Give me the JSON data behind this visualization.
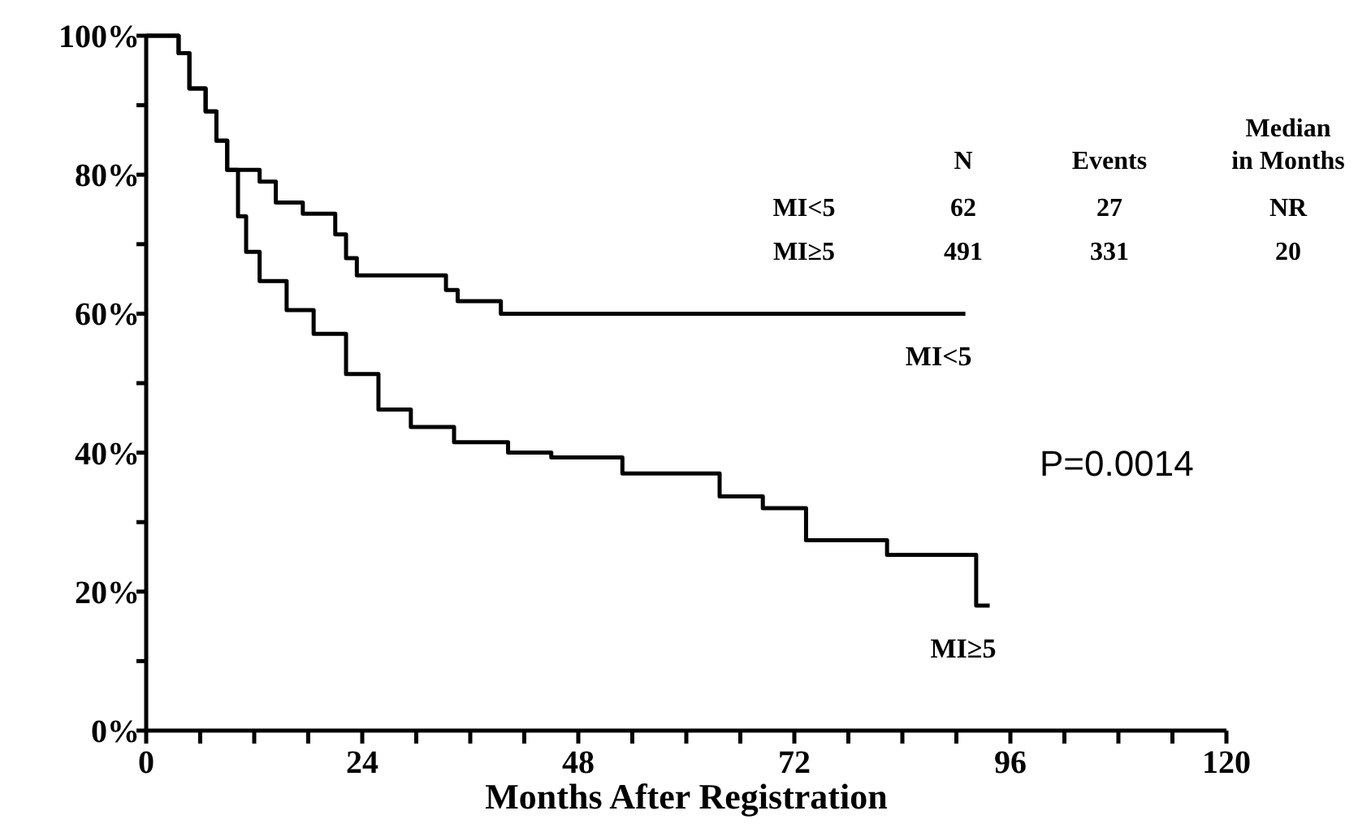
{
  "chart_data": {
    "type": "step",
    "xlabel": "Months After Registration",
    "xlim": [
      0,
      120
    ],
    "xticks": [
      0,
      {
        "value": 6,
        "label": null
      },
      {
        "value": 12,
        "label": null
      },
      {
        "value": 18,
        "label": null
      },
      24,
      {
        "value": 30,
        "label": null
      },
      {
        "value": 36,
        "label": null
      },
      {
        "value": 42,
        "label": null
      },
      48,
      {
        "value": 54,
        "label": null
      },
      {
        "value": 60,
        "label": null
      },
      {
        "value": 66,
        "label": null
      },
      72,
      {
        "value": 78,
        "label": null
      },
      {
        "value": 84,
        "label": null
      },
      {
        "value": 90,
        "label": null
      },
      96,
      {
        "value": 102,
        "label": null
      },
      {
        "value": 108,
        "label": null
      },
      {
        "value": 114,
        "label": null
      },
      120
    ],
    "ylim": [
      0,
      100
    ],
    "yticks": [
      {
        "value": 0,
        "label": "0%"
      },
      {
        "value": 10,
        "label": null
      },
      {
        "value": 20,
        "label": "20%"
      },
      {
        "value": 30,
        "label": null
      },
      {
        "value": 40,
        "label": "40%"
      },
      {
        "value": 50,
        "label": null
      },
      {
        "value": 60,
        "label": "60%"
      },
      {
        "value": 70,
        "label": null
      },
      {
        "value": 80,
        "label": "80%"
      },
      {
        "value": 90,
        "label": null
      },
      {
        "value": 100,
        "label": "100%"
      }
    ],
    "grid": false,
    "marker": "none",
    "line_style": "solid",
    "series": [
      {
        "name": "MI<5",
        "color": "#000000",
        "x": [
          0,
          2.5,
          3.6,
          4.8,
          6.6,
          7.8,
          9,
          12.6,
          14.4,
          17.4,
          21,
          22.2,
          23.4,
          33.3,
          34.6,
          39.4,
          51,
          91
        ],
        "values": [
          100,
          100,
          97.5,
          92.4,
          89.1,
          84.9,
          80.7,
          79,
          76,
          74.4,
          71.4,
          68,
          65.5,
          63.4,
          61.8,
          60,
          60,
          60
        ]
      },
      {
        "name": "MI≥5",
        "color": "#000000",
        "x": [
          0,
          1.8,
          3.6,
          4.8,
          6.6,
          7.8,
          9,
          10.2,
          11.1,
          12.6,
          15.6,
          18.6,
          22.2,
          25.8,
          29.4,
          34.2,
          40.2,
          45,
          52.9,
          63.7,
          68.5,
          73.3,
          82.3,
          92.2,
          93.7
        ],
        "values": [
          100,
          100,
          97.5,
          92.4,
          89.1,
          84.9,
          80.7,
          74,
          68.9,
          64.7,
          60.5,
          57.1,
          51.3,
          46.2,
          43.7,
          41.5,
          40,
          39.3,
          37,
          33.7,
          32,
          27.4,
          25.3,
          18,
          18
        ]
      }
    ],
    "annotations": [
      "N",
      "Events",
      "Median in Months",
      "MI<5",
      "62",
      "27",
      "NR",
      "MI≥5",
      "491",
      "331",
      "20",
      "P=0.0014"
    ]
  }
}
